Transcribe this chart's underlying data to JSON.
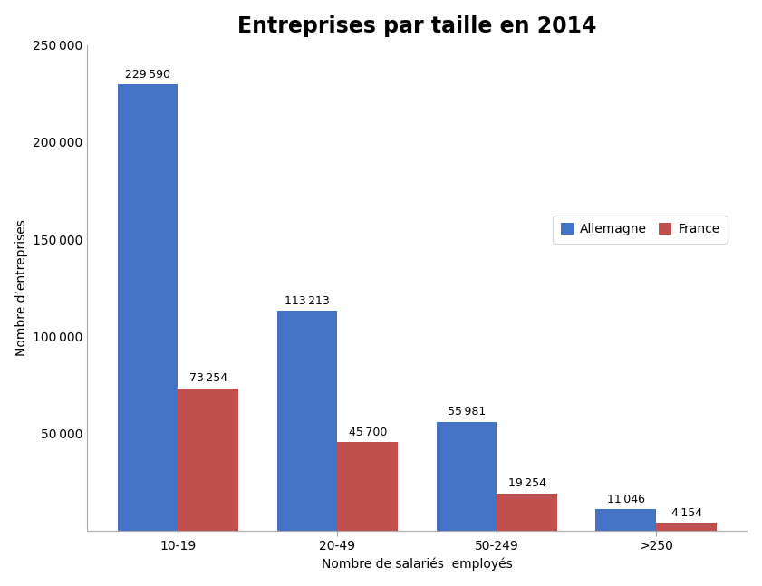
{
  "title": "Entreprises par taille en 2014",
  "xlabel": "Nombre de salariés  employés",
  "ylabel": "Nombre d’entreprises",
  "categories": [
    "10-19",
    "20-49",
    "50-249",
    ">250"
  ],
  "allemagne": [
    229590,
    113213,
    55981,
    11046
  ],
  "france": [
    73254,
    45700,
    19254,
    4154
  ],
  "color_allemagne": "#4472C4",
  "color_france": "#C0504D",
  "ylim": [
    0,
    250000
  ],
  "yticks": [
    0,
    50000,
    100000,
    150000,
    200000,
    250000
  ],
  "ytick_labels": [
    "",
    "50 000",
    "100 000",
    "150 000",
    "200 000",
    "250 000"
  ],
  "legend_labels": [
    "Allemagne",
    "France"
  ],
  "bar_width": 0.38,
  "title_fontsize": 17,
  "label_fontsize": 10,
  "tick_fontsize": 10,
  "annotation_fontsize": 9,
  "background_color": "#ffffff"
}
